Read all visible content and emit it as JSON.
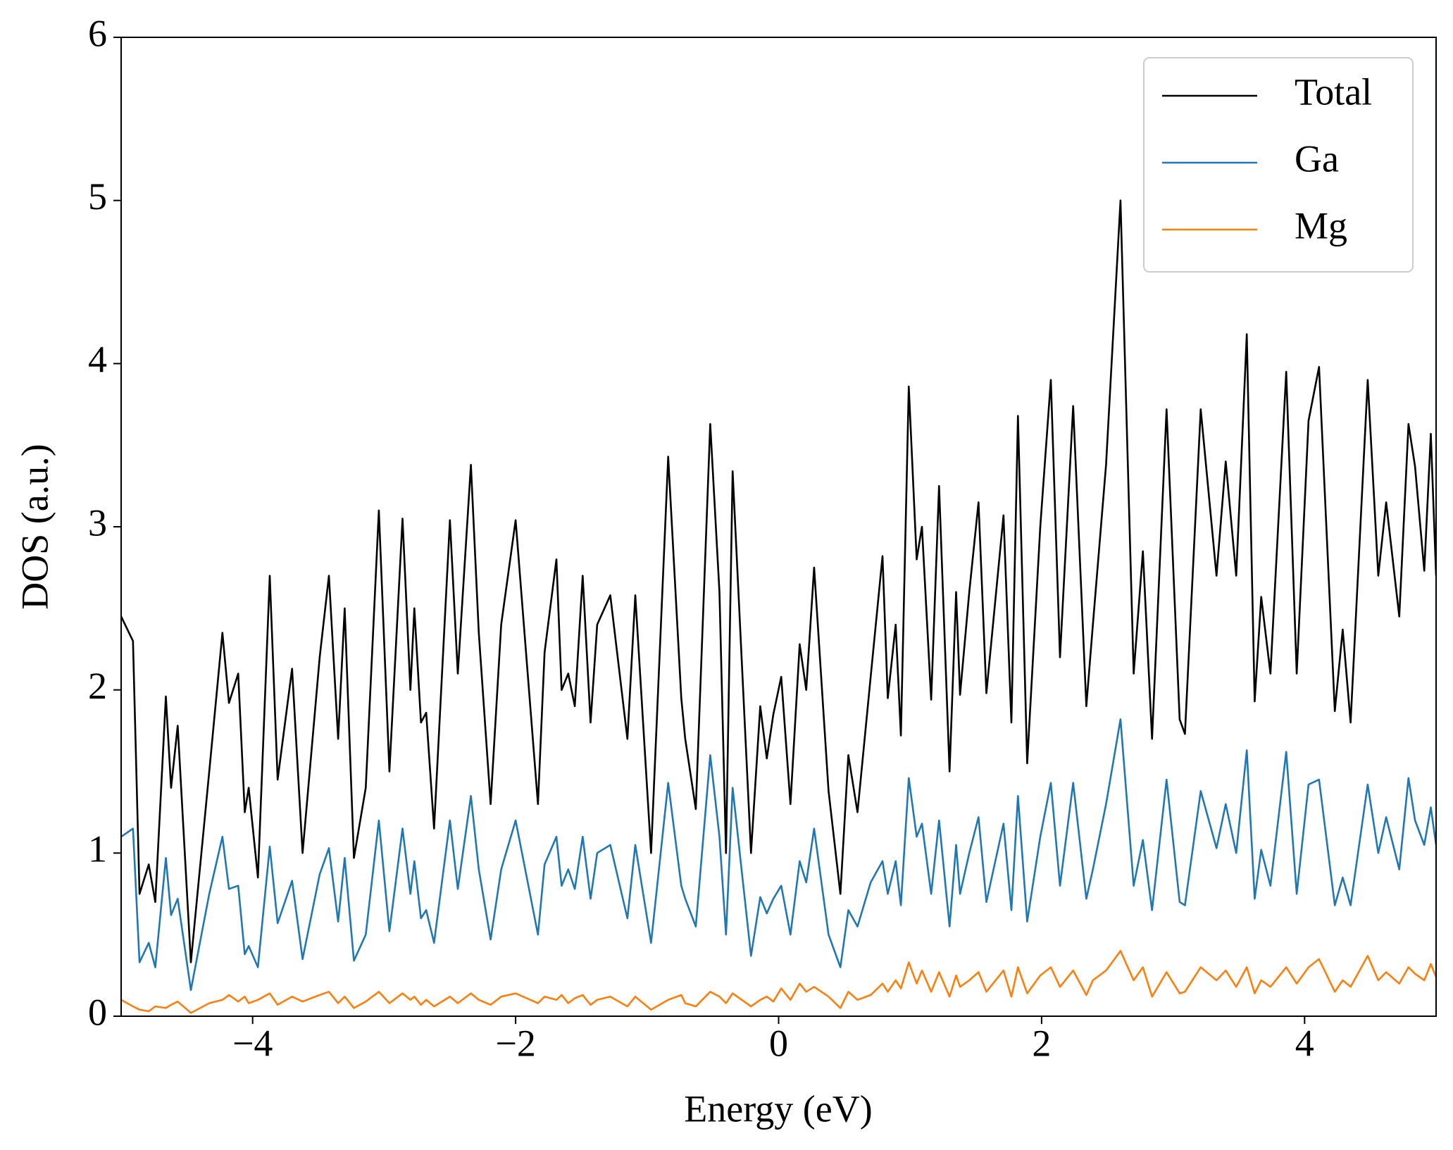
{
  "chart_data": {
    "type": "line",
    "xlabel": "Energy (eV)",
    "ylabel": "DOS (a.u.)",
    "x": [
      -5,
      -4.91,
      -4.86,
      -4.79,
      -4.74,
      -4.66,
      -4.62,
      -4.57,
      -4.47,
      -4.33,
      -4.23,
      -4.18,
      -4.11,
      -4.06,
      -4.03,
      -3.96,
      -3.87,
      -3.81,
      -3.7,
      -3.62,
      -3.49,
      -3.42,
      -3.35,
      -3.3,
      -3.23,
      -3.14,
      -3.04,
      -2.96,
      -2.86,
      -2.8,
      -2.77,
      -2.72,
      -2.68,
      -2.62,
      -2.5,
      -2.44,
      -2.34,
      -2.28,
      -2.19,
      -2.11,
      -2,
      -1.83,
      -1.78,
      -1.69,
      -1.65,
      -1.6,
      -1.55,
      -1.49,
      -1.43,
      -1.38,
      -1.28,
      -1.15,
      -1.09,
      -0.97,
      -0.84,
      -0.74,
      -0.71,
      -0.63,
      -0.52,
      -0.45,
      -0.4,
      -0.35,
      -0.21,
      -0.14,
      -0.09,
      -0.04,
      0.02,
      0.09,
      0.16,
      0.21,
      0.27,
      0.38,
      0.47,
      0.53,
      0.6,
      0.7,
      0.79,
      0.83,
      0.89,
      0.93,
      0.99,
      1.05,
      1.09,
      1.16,
      1.22,
      1.3,
      1.35,
      1.38,
      1.45,
      1.52,
      1.58,
      1.71,
      1.77,
      1.82,
      1.89,
      1.99,
      2.07,
      2.14,
      2.24,
      2.34,
      2.39,
      2.49,
      2.6,
      2.7,
      2.77,
      2.84,
      2.95,
      3.05,
      3.09,
      3.21,
      3.33,
      3.4,
      3.48,
      3.56,
      3.62,
      3.67,
      3.74,
      3.86,
      3.94,
      4.03,
      4.11,
      4.23,
      4.29,
      4.35,
      4.48,
      4.56,
      4.62,
      4.72,
      4.79,
      4.84,
      4.91,
      4.96,
      5
    ],
    "series": [
      {
        "name": "Total",
        "color": "#000000",
        "values": [
          2.45,
          2.3,
          0.75,
          0.93,
          0.7,
          1.96,
          1.4,
          1.78,
          0.33,
          1.5,
          2.35,
          1.92,
          2.1,
          1.25,
          1.4,
          0.85,
          2.7,
          1.45,
          2.13,
          1.0,
          2.2,
          2.7,
          1.7,
          2.5,
          0.97,
          1.4,
          3.1,
          1.5,
          3.05,
          2.0,
          2.5,
          1.8,
          1.86,
          1.15,
          3.04,
          2.1,
          3.38,
          2.35,
          1.3,
          2.4,
          3.04,
          1.3,
          2.23,
          2.8,
          2.0,
          2.1,
          1.9,
          2.7,
          1.8,
          2.4,
          2.58,
          1.7,
          2.58,
          1.0,
          3.43,
          1.95,
          1.7,
          1.27,
          3.63,
          2.6,
          1.0,
          3.34,
          1.0,
          1.9,
          1.58,
          1.85,
          2.08,
          1.3,
          2.28,
          2.0,
          2.75,
          1.38,
          0.75,
          1.6,
          1.25,
          2.08,
          2.82,
          1.95,
          2.4,
          1.72,
          3.86,
          2.8,
          3.0,
          1.94,
          3.25,
          1.5,
          2.6,
          1.97,
          2.6,
          3.15,
          1.98,
          3.07,
          1.8,
          3.68,
          1.55,
          3.0,
          3.9,
          2.2,
          3.74,
          1.9,
          2.4,
          3.38,
          5.0,
          2.1,
          2.85,
          1.7,
          3.72,
          1.82,
          1.73,
          3.72,
          2.7,
          3.4,
          2.7,
          4.18,
          1.93,
          2.57,
          2.1,
          3.95,
          2.1,
          3.65,
          3.98,
          1.87,
          2.37,
          1.8,
          3.9,
          2.7,
          3.15,
          2.45,
          3.63,
          3.37,
          2.73,
          3.57,
          2.7
        ]
      },
      {
        "name": "Ga",
        "color": "#1f77b4",
        "values": [
          1.1,
          1.15,
          0.33,
          0.45,
          0.3,
          0.97,
          0.62,
          0.72,
          0.16,
          0.75,
          1.1,
          0.78,
          0.8,
          0.38,
          0.43,
          0.3,
          1.04,
          0.57,
          0.83,
          0.35,
          0.87,
          1.03,
          0.58,
          0.97,
          0.34,
          0.5,
          1.2,
          0.52,
          1.15,
          0.75,
          0.95,
          0.6,
          0.65,
          0.45,
          1.2,
          0.78,
          1.35,
          0.9,
          0.47,
          0.9,
          1.2,
          0.5,
          0.93,
          1.1,
          0.8,
          0.9,
          0.78,
          1.1,
          0.72,
          1.0,
          1.05,
          0.6,
          1.05,
          0.45,
          1.43,
          0.8,
          0.72,
          0.55,
          1.6,
          1.1,
          0.5,
          1.4,
          0.37,
          0.73,
          0.63,
          0.72,
          0.8,
          0.5,
          0.95,
          0.82,
          1.15,
          0.5,
          0.3,
          0.65,
          0.55,
          0.82,
          0.95,
          0.75,
          0.95,
          0.68,
          1.46,
          1.1,
          1.18,
          0.75,
          1.2,
          0.55,
          1.05,
          0.75,
          1.0,
          1.22,
          0.7,
          1.18,
          0.65,
          1.35,
          0.58,
          1.1,
          1.43,
          0.8,
          1.43,
          0.72,
          0.9,
          1.3,
          1.82,
          0.8,
          1.08,
          0.65,
          1.45,
          0.7,
          0.68,
          1.38,
          1.03,
          1.3,
          1.0,
          1.63,
          0.72,
          1.02,
          0.8,
          1.62,
          0.75,
          1.42,
          1.45,
          0.68,
          0.85,
          0.68,
          1.42,
          1.0,
          1.22,
          0.9,
          1.46,
          1.2,
          1.05,
          1.28,
          1.05
        ]
      },
      {
        "name": "Mg",
        "color": "#ff7f0e",
        "values": [
          0.1,
          0.06,
          0.04,
          0.03,
          0.06,
          0.05,
          0.07,
          0.09,
          0.02,
          0.08,
          0.1,
          0.13,
          0.09,
          0.12,
          0.08,
          0.1,
          0.14,
          0.07,
          0.12,
          0.09,
          0.13,
          0.15,
          0.08,
          0.12,
          0.05,
          0.09,
          0.15,
          0.08,
          0.14,
          0.1,
          0.12,
          0.07,
          0.1,
          0.06,
          0.12,
          0.08,
          0.14,
          0.1,
          0.07,
          0.12,
          0.14,
          0.08,
          0.12,
          0.1,
          0.13,
          0.08,
          0.11,
          0.13,
          0.07,
          0.1,
          0.12,
          0.06,
          0.12,
          0.04,
          0.1,
          0.13,
          0.08,
          0.06,
          0.15,
          0.12,
          0.08,
          0.14,
          0.06,
          0.1,
          0.12,
          0.09,
          0.17,
          0.1,
          0.2,
          0.15,
          0.18,
          0.12,
          0.05,
          0.15,
          0.1,
          0.13,
          0.2,
          0.15,
          0.22,
          0.17,
          0.33,
          0.2,
          0.28,
          0.15,
          0.27,
          0.12,
          0.25,
          0.18,
          0.22,
          0.27,
          0.15,
          0.28,
          0.12,
          0.3,
          0.14,
          0.25,
          0.3,
          0.18,
          0.28,
          0.13,
          0.22,
          0.28,
          0.4,
          0.22,
          0.3,
          0.12,
          0.27,
          0.14,
          0.15,
          0.3,
          0.22,
          0.28,
          0.18,
          0.3,
          0.14,
          0.22,
          0.18,
          0.3,
          0.2,
          0.3,
          0.35,
          0.15,
          0.22,
          0.18,
          0.37,
          0.22,
          0.27,
          0.2,
          0.3,
          0.26,
          0.22,
          0.32,
          0.24
        ]
      }
    ],
    "xlim": [
      -5,
      5
    ],
    "ylim": [
      0,
      6
    ],
    "xticks": [
      {
        "value": -4,
        "label": "−4"
      },
      {
        "value": -2,
        "label": "−2"
      },
      0,
      2,
      4
    ],
    "yticks": [
      0,
      1,
      2,
      3,
      4,
      5,
      6
    ],
    "legend": "upper right"
  }
}
